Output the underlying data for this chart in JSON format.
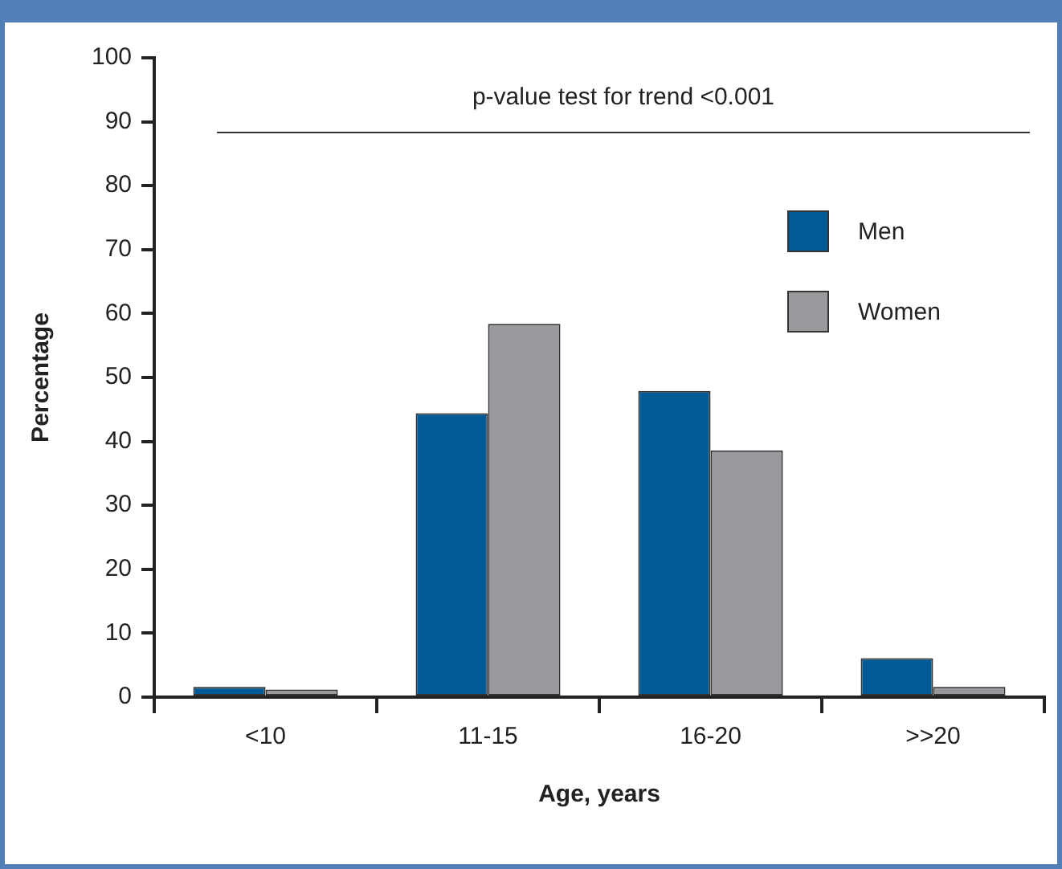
{
  "chart_data": {
    "type": "bar",
    "xlabel": "Age, years",
    "ylabel": "Percentage",
    "categories": [
      "<10",
      "11-15",
      "16-20",
      ">>20"
    ],
    "series": [
      {
        "name": "Men",
        "color": "#005a96",
        "values": [
          1.6,
          44.4,
          47.9,
          6.1
        ]
      },
      {
        "name": "Women",
        "color": "#97999c",
        "values": [
          1.2,
          58.4,
          38.6,
          1.6
        ]
      }
    ],
    "ylim": [
      0,
      100
    ],
    "yticks": [
      0,
      10,
      20,
      30,
      40,
      50,
      60,
      70,
      80,
      90,
      100
    ],
    "grid": false,
    "legend": "top right",
    "ref_lines": [
      {
        "axis": "y",
        "value": 88.5,
        "label": "p-value test for trend <0.001",
        "color": "#333333"
      }
    ]
  }
}
